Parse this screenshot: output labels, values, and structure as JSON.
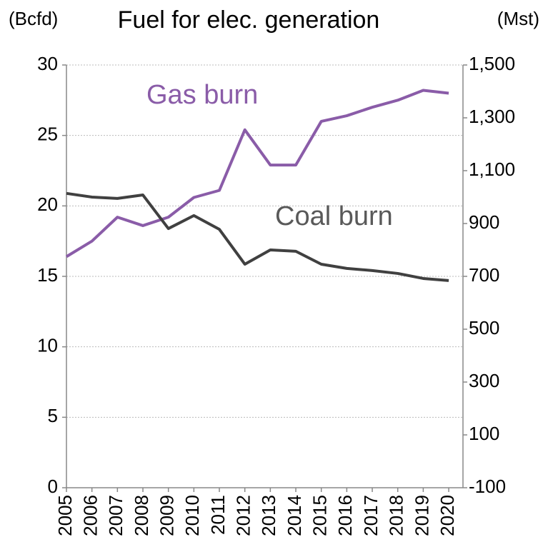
{
  "chart_data": {
    "type": "line",
    "title": "Fuel for elec. generation",
    "y_label": "(Bcfd)",
    "y2_label": "(Mst)",
    "categories": [
      "2005",
      "2006",
      "2007",
      "2008",
      "2009",
      "2010",
      "2011",
      "2012",
      "2013",
      "2014",
      "2015",
      "2016",
      "2017",
      "2018",
      "2019",
      "2020"
    ],
    "series": [
      {
        "name": "Gas burn",
        "color": "#8a5ca8",
        "axis": "y",
        "values": [
          16.4,
          17.5,
          19.2,
          18.6,
          19.2,
          20.6,
          21.1,
          25.4,
          22.9,
          22.9,
          26.0,
          26.4,
          27.0,
          27.5,
          28.2,
          28.0
        ]
      },
      {
        "name": "Coal burn",
        "color": "#404040",
        "axis": "y2",
        "values": [
          1014,
          1000,
          995,
          1008,
          881,
          930,
          878,
          746,
          800,
          795,
          746,
          730,
          722,
          711,
          692,
          684
        ]
      }
    ],
    "ylim": [
      0,
      30
    ],
    "yticks": [
      0,
      5,
      10,
      15,
      20,
      25,
      30
    ],
    "y2lim": [
      -100,
      1500
    ],
    "y2ticks": [
      -100,
      100,
      300,
      500,
      700,
      900,
      {
        "value": 1100,
        "label": "1,100"
      },
      {
        "value": 1300,
        "label": "1,300"
      },
      {
        "value": 1500,
        "label": "1,500"
      }
    ],
    "grid": true
  }
}
